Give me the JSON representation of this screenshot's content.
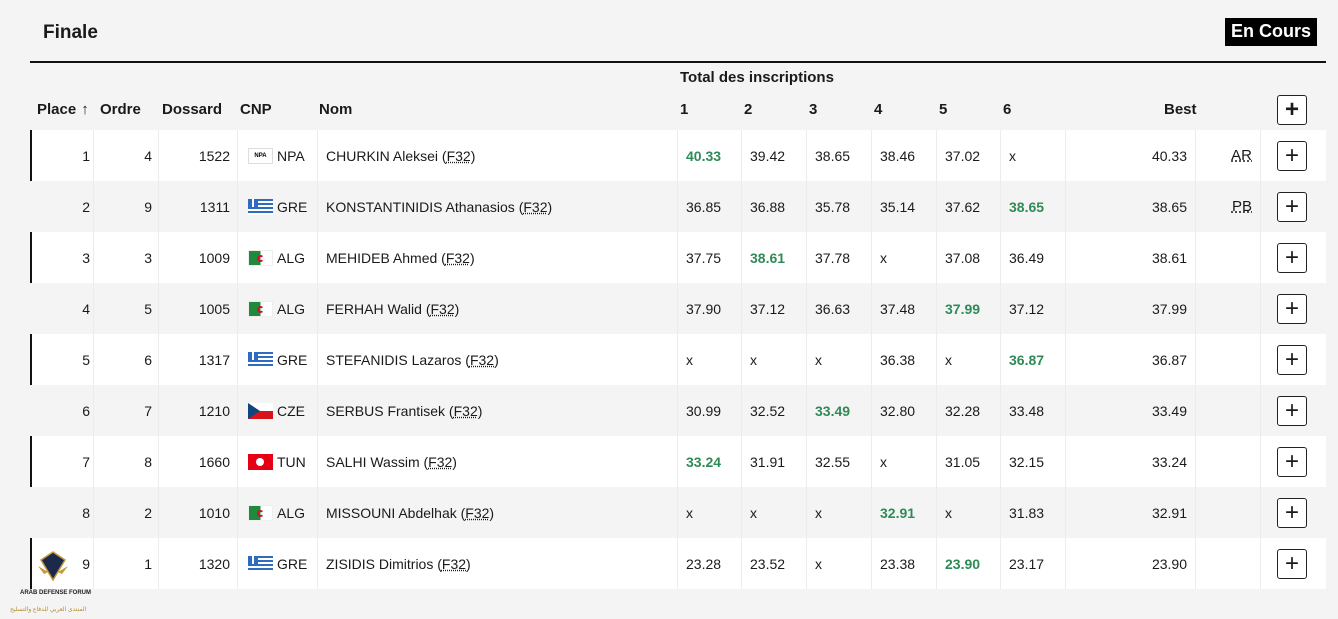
{
  "header": {
    "title": "Finale",
    "status": "En Cours"
  },
  "columns": {
    "group_label": "Total des inscriptions",
    "place": "Place",
    "order": "Ordre",
    "bib": "Dossard",
    "npc": "CNP",
    "name": "Nom",
    "a1": "1",
    "a2": "2",
    "a3": "3",
    "a4": "4",
    "a5": "5",
    "a6": "6",
    "best": "Best",
    "expand_all": "+"
  },
  "rows": [
    {
      "place": "1",
      "order": "4",
      "bib": "1522",
      "flag": "npa",
      "flag_text": "NPA",
      "npc": "NPA",
      "name": "CHURKIN Aleksei",
      "cls": "F32",
      "attempts": [
        "40.33",
        "39.42",
        "38.65",
        "38.46",
        "37.02",
        "x"
      ],
      "best_idx": 0,
      "best": "40.33",
      "record": "AR",
      "expand": "+"
    },
    {
      "place": "2",
      "order": "9",
      "bib": "1311",
      "flag": "gre",
      "npc": "GRE",
      "name": "KONSTANTINIDIS Athanasios",
      "cls": "F32",
      "attempts": [
        "36.85",
        "36.88",
        "35.78",
        "35.14",
        "37.62",
        "38.65"
      ],
      "best_idx": 5,
      "best": "38.65",
      "record": "PB",
      "expand": "+"
    },
    {
      "place": "3",
      "order": "3",
      "bib": "1009",
      "flag": "alg",
      "npc": "ALG",
      "name": "MEHIDEB Ahmed",
      "cls": "F32",
      "attempts": [
        "37.75",
        "38.61",
        "37.78",
        "x",
        "37.08",
        "36.49"
      ],
      "best_idx": 1,
      "best": "38.61",
      "record": "",
      "expand": "+"
    },
    {
      "place": "4",
      "order": "5",
      "bib": "1005",
      "flag": "alg",
      "npc": "ALG",
      "name": "FERHAH Walid",
      "cls": "F32",
      "attempts": [
        "37.90",
        "37.12",
        "36.63",
        "37.48",
        "37.99",
        "37.12"
      ],
      "best_idx": 4,
      "best": "37.99",
      "record": "",
      "expand": "+"
    },
    {
      "place": "5",
      "order": "6",
      "bib": "1317",
      "flag": "gre",
      "npc": "GRE",
      "name": "STEFANIDIS Lazaros",
      "cls": "F32",
      "attempts": [
        "x",
        "x",
        "x",
        "36.38",
        "x",
        "36.87"
      ],
      "best_idx": 5,
      "best": "36.87",
      "record": "",
      "expand": "+"
    },
    {
      "place": "6",
      "order": "7",
      "bib": "1210",
      "flag": "cze",
      "npc": "CZE",
      "name": "SERBUS Frantisek",
      "cls": "F32",
      "attempts": [
        "30.99",
        "32.52",
        "33.49",
        "32.80",
        "32.28",
        "33.48"
      ],
      "best_idx": 2,
      "best": "33.49",
      "record": "",
      "expand": "+"
    },
    {
      "place": "7",
      "order": "8",
      "bib": "1660",
      "flag": "tun",
      "npc": "TUN",
      "name": "SALHI Wassim",
      "cls": "F32",
      "attempts": [
        "33.24",
        "31.91",
        "32.55",
        "x",
        "31.05",
        "32.15"
      ],
      "best_idx": 0,
      "best": "33.24",
      "record": "",
      "expand": "+"
    },
    {
      "place": "8",
      "order": "2",
      "bib": "1010",
      "flag": "alg",
      "npc": "ALG",
      "name": "MISSOUNI Abdelhak",
      "cls": "F32",
      "attempts": [
        "x",
        "x",
        "x",
        "32.91",
        "x",
        "31.83"
      ],
      "best_idx": 3,
      "best": "32.91",
      "record": "",
      "expand": "+"
    },
    {
      "place": "9",
      "order": "1",
      "bib": "1320",
      "flag": "gre",
      "npc": "GRE",
      "name": "ZISIDIS Dimitrios",
      "cls": "F32",
      "attempts": [
        "23.28",
        "23.52",
        "x",
        "23.38",
        "23.90",
        "23.17"
      ],
      "best_idx": 4,
      "best": "23.90",
      "record": "",
      "expand": "+"
    }
  ],
  "watermark": {
    "logo_text": "DA",
    "line1": "ARAB DEFENSE FORUM",
    "line2": "المنتدى العربي للدفاع والتسليح"
  }
}
